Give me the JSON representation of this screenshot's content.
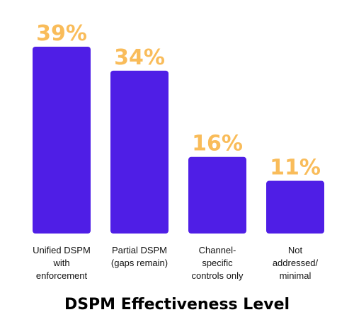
{
  "chart_data": {
    "type": "bar",
    "categories": [
      "Unified DSPM with enforcement",
      "Partial DSPM (gaps remain)",
      "Channel-specific controls only",
      "Not addressed/ minimal"
    ],
    "category_lines": [
      [
        "Unified DSPM",
        "with",
        "enforcement"
      ],
      [
        "Partial DSPM",
        "(gaps remain)"
      ],
      [
        "Channel-",
        "specific",
        "controls only"
      ],
      [
        "Not",
        "addressed/",
        "minimal"
      ]
    ],
    "values": [
      39,
      34,
      16,
      11
    ],
    "value_labels": [
      "39%",
      "34%",
      "16%",
      "11%"
    ],
    "xlabel": "DSPM Effectiveness Level",
    "ylabel": "",
    "ylim": [
      0,
      39
    ],
    "grid": false,
    "legend": "none",
    "colors": {
      "bar": "#4F1EE6",
      "value_label": "#F9BC5A"
    }
  }
}
